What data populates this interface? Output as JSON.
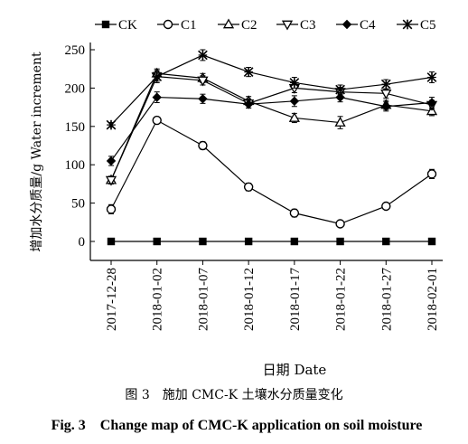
{
  "chart_data": {
    "type": "line",
    "title": "",
    "xlabel": "日期 Date",
    "ylabel": "增加水分质量/g Water increment",
    "categories": [
      "2017-12-28",
      "2018-01-02",
      "2018-01-07",
      "2018-01-12",
      "2018-01-17",
      "2018-01-22",
      "2018-01-27",
      "2018-02-01"
    ],
    "y_ticks": [
      "0",
      "50",
      "100",
      "150",
      "200",
      "250"
    ],
    "ylim": [
      -20,
      250
    ],
    "legend_position": "top",
    "error_bars": true,
    "series": [
      {
        "name": "CK",
        "marker": "square-filled",
        "values": [
          0,
          0,
          0,
          0,
          0,
          0,
          0,
          0
        ],
        "errors": [
          0,
          0,
          0,
          0,
          0,
          0,
          0,
          0
        ]
      },
      {
        "name": "C1",
        "marker": "circle-open",
        "values": [
          42,
          158,
          125,
          71,
          37,
          23,
          46,
          88
        ],
        "errors": [
          6,
          4,
          5,
          5,
          5,
          3,
          3,
          6
        ]
      },
      {
        "name": "C2",
        "marker": "triangle-up-open",
        "values": [
          80,
          219,
          213,
          183,
          161,
          155,
          178,
          170
        ],
        "errors": [
          5,
          6,
          6,
          6,
          6,
          8,
          6,
          6
        ]
      },
      {
        "name": "C3",
        "marker": "triangle-down-open",
        "values": [
          80,
          215,
          210,
          180,
          200,
          195,
          193,
          178
        ],
        "errors": [
          5,
          6,
          6,
          6,
          6,
          6,
          6,
          6
        ]
      },
      {
        "name": "C4",
        "marker": "diamond-filled",
        "values": [
          105,
          188,
          186,
          179,
          183,
          188,
          176,
          181
        ],
        "errors": [
          6,
          7,
          6,
          5,
          7,
          6,
          6,
          7
        ]
      },
      {
        "name": "C5",
        "marker": "star",
        "values": [
          152,
          215,
          243,
          221,
          207,
          198,
          205,
          214
        ],
        "errors": [
          3,
          8,
          7,
          6,
          7,
          6,
          6,
          7
        ]
      }
    ]
  },
  "caption": {
    "zh": "图 3　施加 CMC-K 土壤水分质量变化",
    "en": "Fig. 3　Change map of CMC-K application on soil moisture"
  }
}
